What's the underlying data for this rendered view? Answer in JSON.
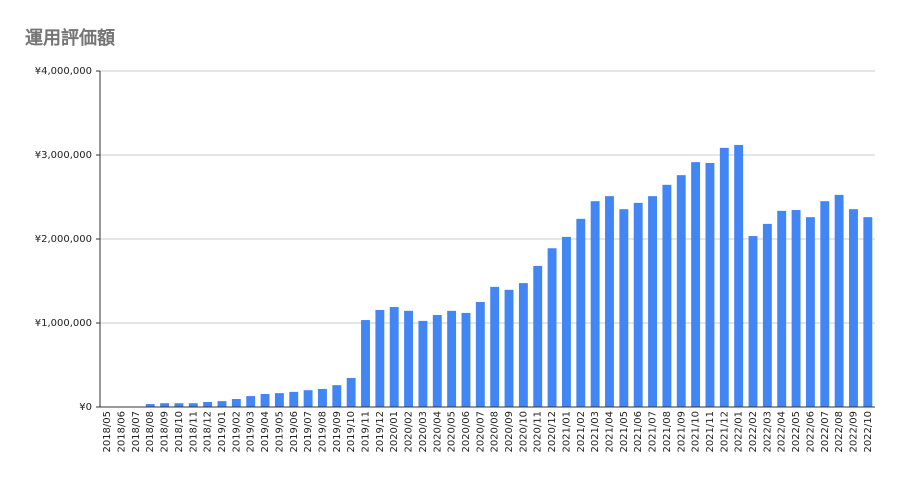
{
  "chart_data": {
    "type": "bar",
    "title": "運用評価額",
    "categories": [
      "2018/05",
      "2018/06",
      "2018/07",
      "2018/08",
      "2018/09",
      "2018/10",
      "2018/11",
      "2018/12",
      "2019/01",
      "2019/02",
      "2019/03",
      "2019/04",
      "2019/05",
      "2019/06",
      "2019/07",
      "2019/08",
      "2019/09",
      "2019/10",
      "2019/11",
      "2019/12",
      "2020/01",
      "2020/02",
      "2020/03",
      "2020/04",
      "2020/05",
      "2020/06",
      "2020/07",
      "2020/08",
      "2020/09",
      "2020/10",
      "2020/11",
      "2020/12",
      "2021/01",
      "2021/02",
      "2021/03",
      "2021/04",
      "2021/05",
      "2021/06",
      "2021/07",
      "2021/08",
      "2021/09",
      "2021/10",
      "2021/11",
      "2021/12",
      "2022/01",
      "2022/02",
      "2022/03",
      "2022/04",
      "2022/05",
      "2022/06",
      "2022/07",
      "2022/08",
      "2022/09",
      "2022/10"
    ],
    "values": [
      0,
      0,
      0,
      35000,
      45000,
      45000,
      45000,
      60000,
      70000,
      95000,
      130000,
      155000,
      165000,
      180000,
      200000,
      215000,
      260000,
      345000,
      1035000,
      1155000,
      1190000,
      1145000,
      1025000,
      1095000,
      1145000,
      1120000,
      1250000,
      1430000,
      1395000,
      1475000,
      1680000,
      1890000,
      2025000,
      2240000,
      2450000,
      2510000,
      2355000,
      2430000,
      2510000,
      2645000,
      2760000,
      2915000,
      2905000,
      3085000,
      3120000,
      2035000,
      2180000,
      2335000,
      2345000,
      2260000,
      2450000,
      2525000,
      2355000,
      2260000
    ],
    "color": "#4285f4",
    "ylim": [
      0,
      4000000
    ],
    "yticks": [
      {
        "value": 0,
        "label": "¥0"
      },
      {
        "value": 1000000,
        "label": "¥1,000,000"
      },
      {
        "value": 2000000,
        "label": "¥2,000,000"
      },
      {
        "value": 3000000,
        "label": "¥3,000,000"
      },
      {
        "value": 4000000,
        "label": "¥4,000,000"
      }
    ],
    "grid": true
  }
}
